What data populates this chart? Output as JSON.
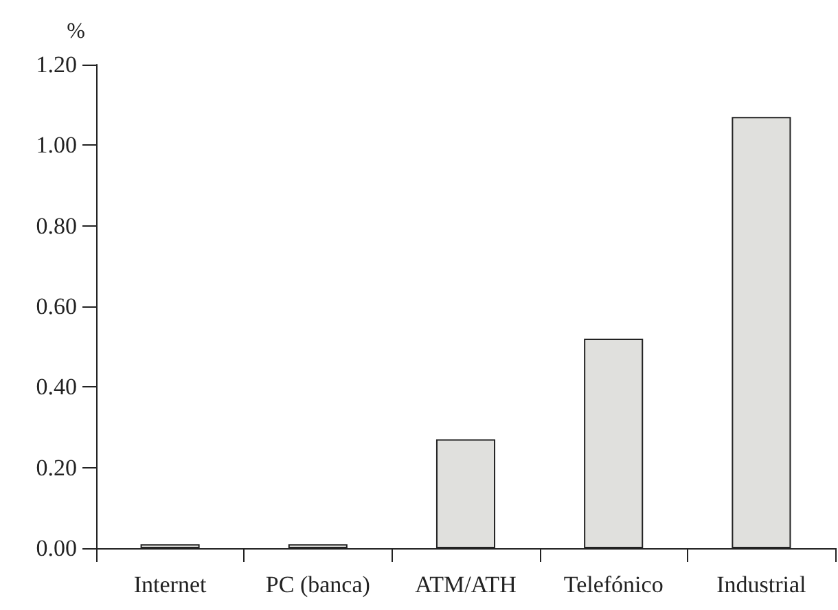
{
  "chart_data": {
    "type": "bar",
    "ylabel": "%",
    "categories": [
      "Internet",
      "PC (banca)",
      "ATM/ATH",
      "Telefónico",
      "Industrial"
    ],
    "values": [
      0.01,
      0.01,
      0.27,
      0.52,
      1.07
    ],
    "color": "#e0e0dd",
    "ylim": [
      0,
      1.2
    ],
    "yticks": [
      {
        "value": 0,
        "label": "0.00"
      },
      {
        "value": 0.2,
        "label": "0.20"
      },
      {
        "value": 0.4,
        "label": "0.40"
      },
      {
        "value": 0.6,
        "label": "0.60"
      },
      {
        "value": 0.8,
        "label": "0.80"
      },
      {
        "value": 1,
        "label": "1.00"
      },
      {
        "value": 1.2,
        "label": "1.20"
      }
    ]
  }
}
